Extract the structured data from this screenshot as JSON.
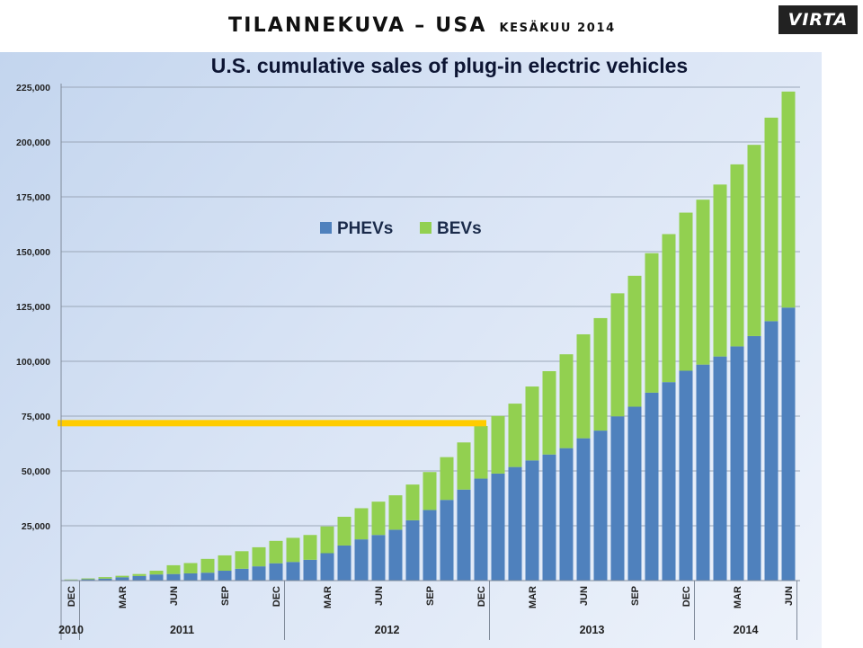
{
  "slide": {
    "title": "TILANNEKUVA – USA",
    "subtitle": "KESÄKUU 2014",
    "logo_text": "VIRTA"
  },
  "colors": {
    "phev": "#4f81bd",
    "bev": "#92d050",
    "highlight": "#ffcc00",
    "gridline": "#9ba7b8"
  },
  "chart_data": {
    "type": "bar",
    "stacked": true,
    "title": "U.S. cumulative sales of plug-in electric vehicles",
    "xlabel": "",
    "ylabel": "",
    "ylim": [
      0,
      225000
    ],
    "yticks": [
      25000,
      50000,
      75000,
      100000,
      125000,
      150000,
      175000,
      200000,
      225000
    ],
    "ytick_labels": [
      "25,000",
      "50,000",
      "75,000",
      "100,000",
      "125,000",
      "150,000",
      "175,000",
      "200,000",
      "225,000"
    ],
    "grid": true,
    "legend_position": "upper-center",
    "x_tick_labels": [
      {
        "index": 0,
        "label": "DEC"
      },
      {
        "index": 3,
        "label": "MAR"
      },
      {
        "index": 6,
        "label": "JUN"
      },
      {
        "index": 9,
        "label": "SEP"
      },
      {
        "index": 12,
        "label": "DEC"
      },
      {
        "index": 15,
        "label": "MAR"
      },
      {
        "index": 18,
        "label": "JUN"
      },
      {
        "index": 21,
        "label": "SEP"
      },
      {
        "index": 24,
        "label": "DEC"
      },
      {
        "index": 27,
        "label": "MAR"
      },
      {
        "index": 30,
        "label": "JUN"
      },
      {
        "index": 33,
        "label": "SEP"
      },
      {
        "index": 36,
        "label": "DEC"
      },
      {
        "index": 39,
        "label": "MAR"
      },
      {
        "index": 42,
        "label": "JUN"
      }
    ],
    "year_groups": [
      {
        "label": "2010",
        "start": 0,
        "end": 0
      },
      {
        "label": "2011",
        "start": 1,
        "end": 12
      },
      {
        "label": "2012",
        "start": 13,
        "end": 24
      },
      {
        "label": "2013",
        "start": 25,
        "end": 36
      },
      {
        "label": "2014",
        "start": 37,
        "end": 42
      }
    ],
    "series": [
      {
        "name": "PHEVs",
        "values": [
          300,
          600,
          900,
          1500,
          2100,
          2800,
          3000,
          3300,
          3600,
          4500,
          5400,
          6500,
          7900,
          8500,
          9500,
          12500,
          16000,
          18800,
          20800,
          23200,
          27500,
          32200,
          36800,
          41500,
          46500,
          48800,
          51800,
          54800,
          57500,
          60400,
          64900,
          68400,
          74900,
          79300,
          85700,
          90500,
          95700,
          98500,
          102200,
          106800,
          111500,
          118300,
          124500
        ]
      },
      {
        "name": "BEVs",
        "values": [
          200,
          400,
          700,
          700,
          900,
          1700,
          4000,
          4700,
          6300,
          7000,
          8000,
          8700,
          10200,
          11000,
          11300,
          12200,
          13100,
          14200,
          15200,
          15700,
          16300,
          17300,
          19500,
          21500,
          24000,
          26300,
          28900,
          33700,
          38000,
          42800,
          47400,
          51300,
          56100,
          59700,
          63600,
          67500,
          72100,
          75200,
          78400,
          83000,
          87200,
          92800,
          98500
        ]
      }
    ],
    "highlight_line": {
      "y": 72000,
      "from_index": 0,
      "to_index": 24
    }
  }
}
